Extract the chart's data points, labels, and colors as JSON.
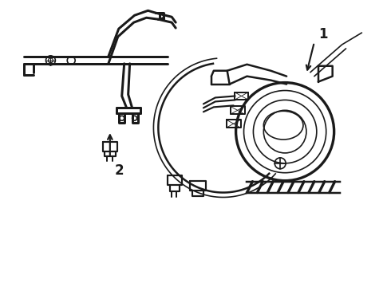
{
  "background_color": "#ffffff",
  "line_color": "#1a1a1a",
  "line_width": 1.2,
  "fig_width": 4.9,
  "fig_height": 3.6,
  "dpi": 100,
  "label_1": "1",
  "label_2": "2"
}
